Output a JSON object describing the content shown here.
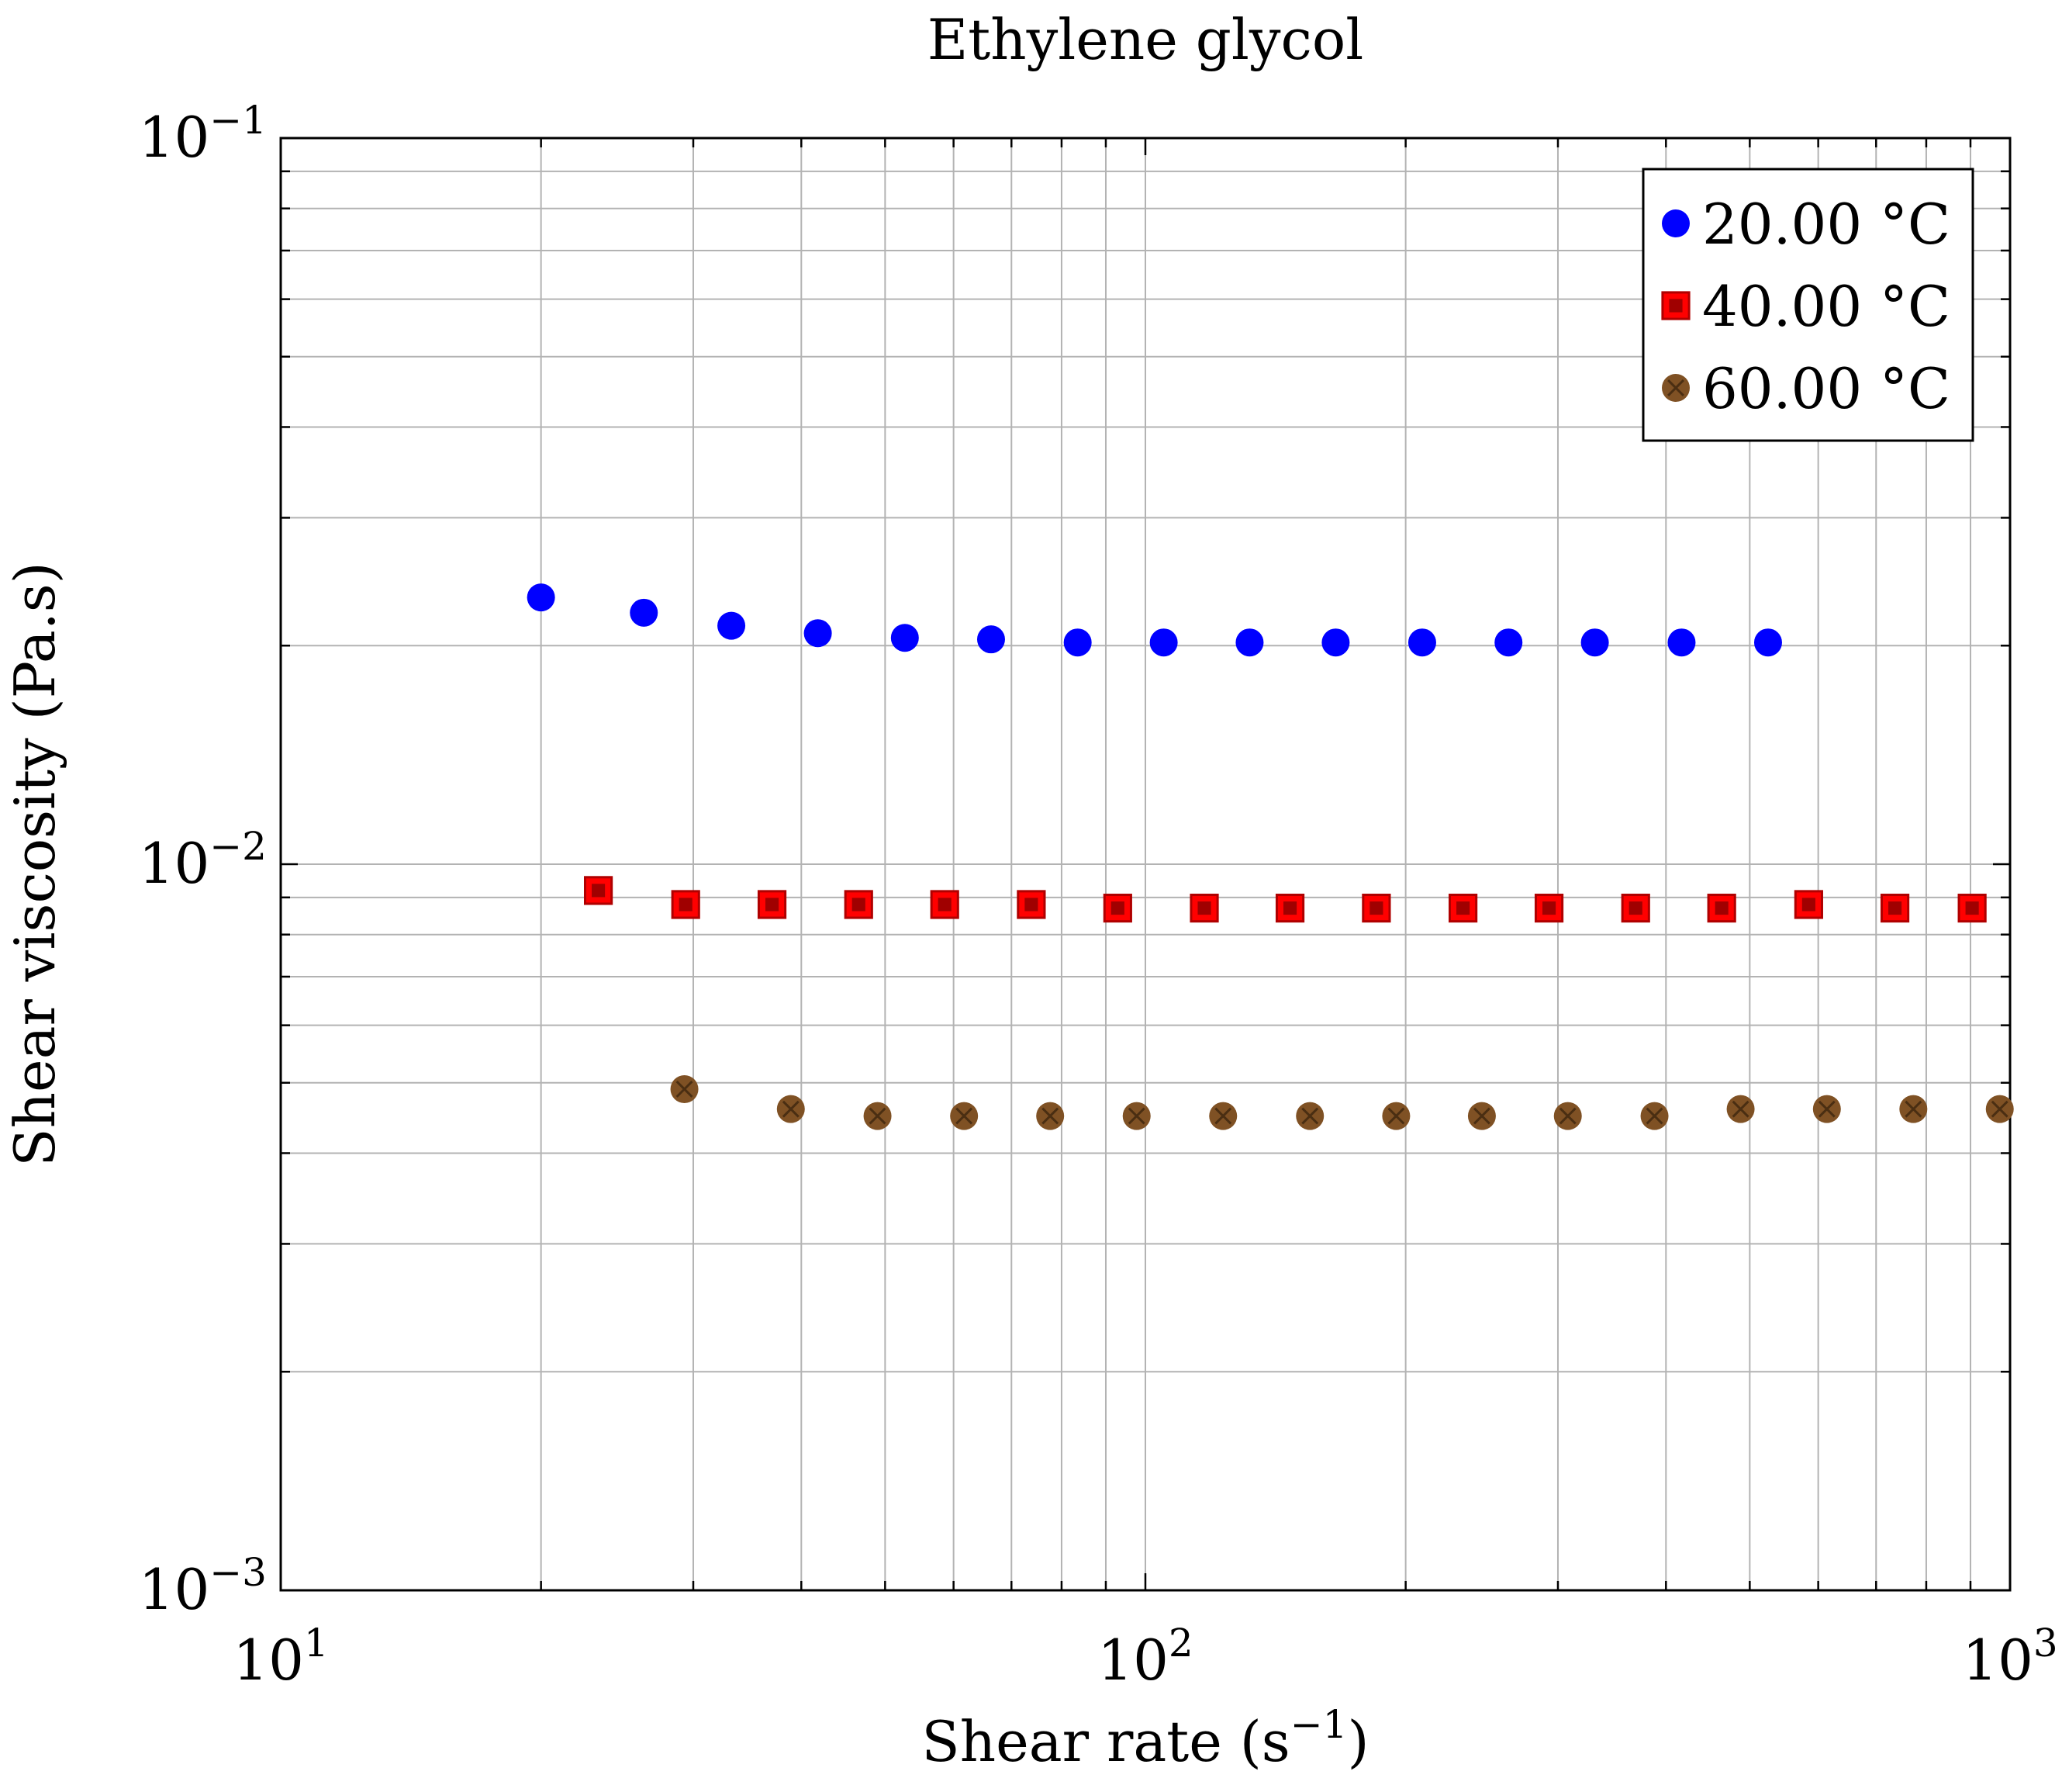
{
  "chart_data": {
    "type": "scatter",
    "title": "Ethylene glycol",
    "xlabel": "Shear rate (s",
    "xlabel_exp": "−1",
    "xlabel_close": ")",
    "ylabel": "Shear viscosity (Pa.s)",
    "xscale": "log",
    "yscale": "log",
    "xlim": [
      10,
      1000
    ],
    "ylim": [
      0.001,
      0.1
    ],
    "grid": true,
    "legend_position": "top-right",
    "x_ticks": [
      {
        "value": 10,
        "base": "10",
        "exp": "1"
      },
      {
        "value": 100,
        "base": "10",
        "exp": "2"
      },
      {
        "value": 1000,
        "base": "10",
        "exp": "3"
      }
    ],
    "y_ticks": [
      {
        "value": 0.001,
        "base": "10",
        "exp": "−3"
      },
      {
        "value": 0.01,
        "base": "10",
        "exp": "−2"
      },
      {
        "value": 0.1,
        "base": "10",
        "exp": "−1"
      }
    ],
    "series": [
      {
        "name": "20.00 °C",
        "marker": "circle",
        "color": "#0000ff",
        "x": [
          20,
          26.3,
          33.2,
          41.8,
          52.7,
          66.3,
          83.5,
          105,
          132,
          166,
          209,
          263,
          331,
          417,
          525
        ],
        "y": [
          0.0233,
          0.0222,
          0.0213,
          0.0208,
          0.0205,
          0.0204,
          0.0202,
          0.0202,
          0.0202,
          0.0202,
          0.0202,
          0.0202,
          0.0202,
          0.0202,
          0.0202
        ]
      },
      {
        "name": "40.00 °C",
        "marker": "square",
        "color": "#ff0000",
        "x": [
          23.3,
          29.4,
          37,
          46.6,
          58.6,
          73.8,
          92.9,
          117,
          147,
          185,
          233,
          293,
          369,
          464,
          585,
          736,
          904
        ],
        "y": [
          0.0092,
          0.0088,
          0.0088,
          0.0088,
          0.0088,
          0.0088,
          0.0087,
          0.0087,
          0.0087,
          0.0087,
          0.0087,
          0.0087,
          0.0087,
          0.0087,
          0.0088,
          0.0087,
          0.0087
        ]
      },
      {
        "name": "60.00 °C",
        "marker": "otimes",
        "color": "#7f5124",
        "x": [
          29.3,
          38.9,
          49,
          61.7,
          77.6,
          97.7,
          123,
          155,
          195,
          245,
          308,
          388,
          488,
          614,
          773,
          973
        ],
        "y": [
          0.0049,
          0.0046,
          0.0045,
          0.0045,
          0.0045,
          0.0045,
          0.0045,
          0.0045,
          0.0045,
          0.0045,
          0.0045,
          0.0045,
          0.0046,
          0.0046,
          0.0046,
          0.0046
        ]
      }
    ]
  }
}
